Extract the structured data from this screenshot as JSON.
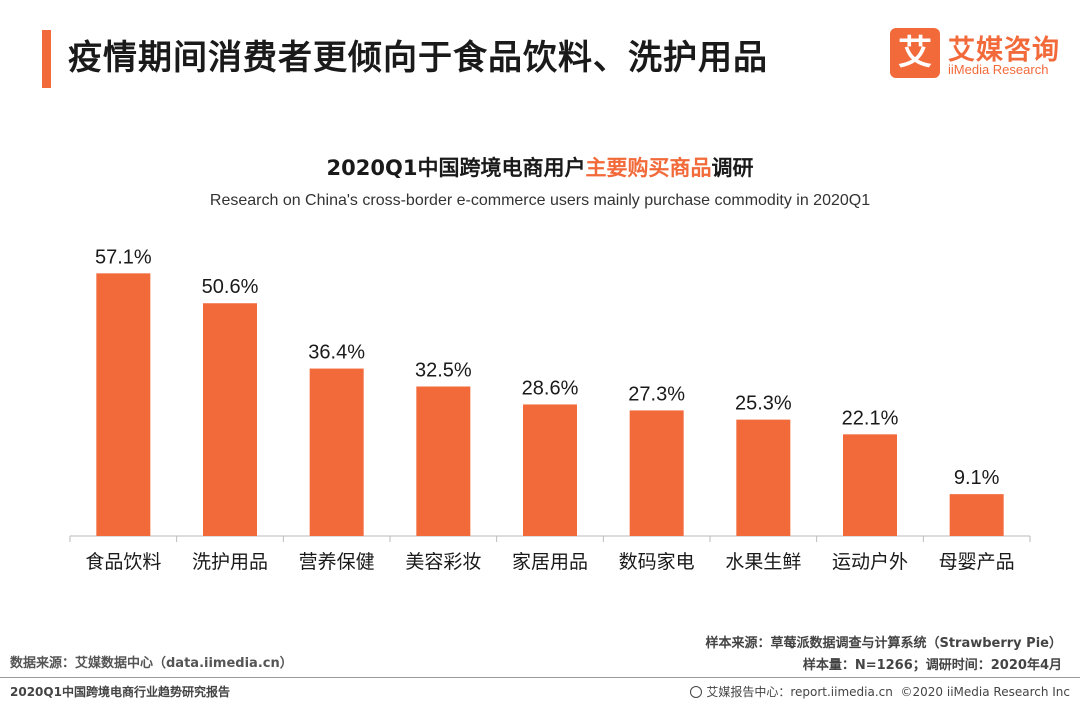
{
  "header": {
    "title": "疫情期间消费者更倾向于食品饮料、洗护用品"
  },
  "logo": {
    "mark": "艾",
    "name_cn": "艾媒咨询",
    "name_en": "iiMedia Research"
  },
  "chart_data": {
    "type": "bar",
    "title_prefix": "2020Q1中国跨境电商用户",
    "title_highlight": "主要购买商品",
    "title_suffix": "调研",
    "subtitle": "Research on China's cross-border e-commerce users mainly purchase commodity in 2020Q1",
    "categories": [
      "食品饮料",
      "洗护用品",
      "营养保健",
      "美容彩妆",
      "家居用品",
      "数码家电",
      "水果生鲜",
      "运动户外",
      "母婴产品"
    ],
    "values": [
      57.1,
      50.6,
      36.4,
      32.5,
      28.6,
      27.3,
      25.3,
      22.1,
      9.1
    ],
    "value_labels": [
      "57.1%",
      "50.6%",
      "36.4%",
      "32.5%",
      "28.6%",
      "27.3%",
      "25.3%",
      "22.1%",
      "9.1%"
    ],
    "unit": "%",
    "ylim": [
      0,
      60
    ],
    "grid": false,
    "bar_color": "#f26a3a"
  },
  "footer": {
    "source_right": "样本来源：草莓派数据调查与计算系统（Strawberry Pie）",
    "sample": "样本量：N=1266；调研时间：2020年4月",
    "source_left": "数据来源：艾媒数据中心（data.iimedia.cn）",
    "report": "2020Q1中国跨境电商行业趋势研究报告",
    "report_center": "艾媒报告中心：report.iimedia.cn",
    "copyright": "©2020  iiMedia Research  Inc"
  },
  "colors": {
    "accent": "#f26a3a"
  }
}
